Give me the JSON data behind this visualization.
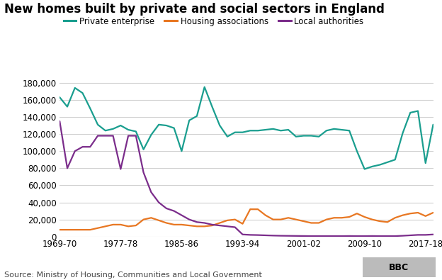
{
  "title": "New homes built by private and social sectors in England",
  "source": "Source: Ministry of Housing, Communities and Local Government",
  "xlabel_ticks": [
    "1969-70",
    "1977-78",
    "1985-86",
    "1993-94",
    "2001-02",
    "2009-10",
    "2017-18"
  ],
  "ylim": [
    0,
    190000
  ],
  "yticks": [
    0,
    20000,
    40000,
    60000,
    80000,
    100000,
    120000,
    140000,
    160000,
    180000
  ],
  "series": {
    "Private enterprise": {
      "color": "#1a9e8f",
      "data_x": [
        1969,
        1970,
        1971,
        1972,
        1973,
        1974,
        1975,
        1976,
        1977,
        1978,
        1979,
        1980,
        1981,
        1982,
        1983,
        1984,
        1985,
        1986,
        1987,
        1988,
        1989,
        1990,
        1991,
        1992,
        1993,
        1994,
        1995,
        1996,
        1997,
        1998,
        1999,
        2000,
        2001,
        2002,
        2003,
        2004,
        2005,
        2006,
        2007,
        2008,
        2009,
        2010,
        2011,
        2012,
        2013,
        2014,
        2015,
        2016,
        2017,
        2018
      ],
      "data_y": [
        163000,
        152000,
        174000,
        168000,
        150000,
        131000,
        124000,
        126000,
        130000,
        125000,
        123000,
        102000,
        119000,
        131000,
        130000,
        127000,
        100000,
        136000,
        141000,
        175000,
        152000,
        130000,
        117000,
        122000,
        122000,
        124000,
        124000,
        125000,
        126000,
        124000,
        125000,
        117000,
        118000,
        118000,
        117000,
        124000,
        126000,
        125000,
        124000,
        100000,
        79000,
        82000,
        84000,
        87000,
        90000,
        121000,
        145000,
        147000,
        86000,
        131000
      ]
    },
    "Housing associations": {
      "color": "#e87722",
      "data_x": [
        1969,
        1970,
        1971,
        1972,
        1973,
        1974,
        1975,
        1976,
        1977,
        1978,
        1979,
        1980,
        1981,
        1982,
        1983,
        1984,
        1985,
        1986,
        1987,
        1988,
        1989,
        1990,
        1991,
        1992,
        1993,
        1994,
        1995,
        1996,
        1997,
        1998,
        1999,
        2000,
        2001,
        2002,
        2003,
        2004,
        2005,
        2006,
        2007,
        2008,
        2009,
        2010,
        2011,
        2012,
        2013,
        2014,
        2015,
        2016,
        2017,
        2018
      ],
      "data_y": [
        8000,
        8000,
        8000,
        8000,
        8000,
        10000,
        12000,
        14000,
        14000,
        12000,
        13000,
        20000,
        22000,
        19000,
        16000,
        14000,
        14000,
        13000,
        12000,
        12000,
        13000,
        16000,
        19000,
        20000,
        15000,
        32000,
        32000,
        25000,
        20000,
        20000,
        22000,
        20000,
        18000,
        16000,
        16000,
        20000,
        22000,
        22000,
        23000,
        27000,
        23000,
        20000,
        18000,
        17000,
        22000,
        25000,
        27000,
        28000,
        24000,
        28000
      ]
    },
    "Local authorities": {
      "color": "#7b2d8b",
      "data_x": [
        1969,
        1970,
        1971,
        1972,
        1973,
        1974,
        1975,
        1976,
        1977,
        1978,
        1979,
        1980,
        1981,
        1982,
        1983,
        1984,
        1985,
        1986,
        1987,
        1988,
        1989,
        1990,
        1991,
        1992,
        1993,
        1994,
        1995,
        1996,
        1997,
        1998,
        1999,
        2000,
        2001,
        2002,
        2003,
        2004,
        2005,
        2006,
        2007,
        2008,
        2009,
        2010,
        2011,
        2012,
        2013,
        2014,
        2015,
        2016,
        2017,
        2018
      ],
      "data_y": [
        135000,
        80000,
        100000,
        105000,
        105000,
        118000,
        118000,
        118000,
        79000,
        118000,
        118000,
        75000,
        52000,
        40000,
        33000,
        30000,
        25000,
        20000,
        17000,
        16000,
        14000,
        13000,
        12000,
        11000,
        2500,
        2000,
        1800,
        1500,
        1200,
        1000,
        900,
        800,
        700,
        600,
        600,
        600,
        600,
        600,
        700,
        600,
        600,
        700,
        600,
        600,
        600,
        1000,
        1500,
        2000,
        2000,
        2500
      ]
    }
  },
  "legend_entries": [
    "Private enterprise",
    "Housing associations",
    "Local authorities"
  ],
  "legend_colors": [
    "#1a9e8f",
    "#e87722",
    "#7b2d8b"
  ],
  "background_color": "#ffffff",
  "grid_color": "#d0d0d0",
  "title_fontsize": 12,
  "tick_label_fontsize": 8.5,
  "legend_fontsize": 8.5,
  "source_fontsize": 8,
  "linewidth": 1.6
}
